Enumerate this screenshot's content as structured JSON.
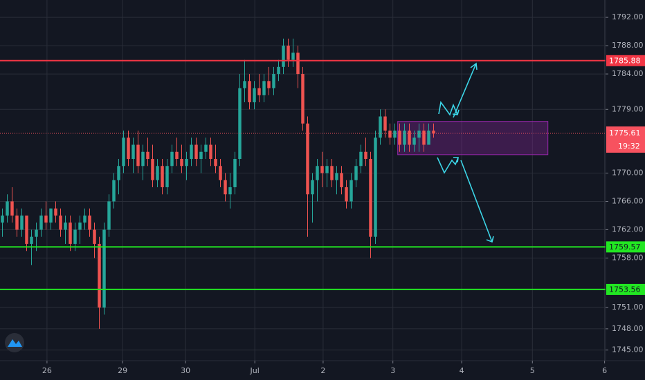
{
  "chart_data": {
    "type": "candlestick",
    "ylim": [
      1743.5,
      1794.45
    ],
    "xlim": [
      -0.5,
      124.5
    ],
    "grid": true,
    "up_color": "#26a69a",
    "down_color": "#ef5350",
    "yticks": [
      {
        "value": 1745,
        "label": "1745.00"
      },
      {
        "value": 1748,
        "label": "1748.00"
      },
      {
        "value": 1751,
        "label": "1751.00"
      },
      {
        "value": 1758,
        "label": "1758.00"
      },
      {
        "value": 1762,
        "label": "1762.00"
      },
      {
        "value": 1766,
        "label": "1766.00"
      },
      {
        "value": 1770,
        "label": "1770.00"
      },
      {
        "value": 1779,
        "label": "1779.00"
      },
      {
        "value": 1784,
        "label": "1784.00"
      },
      {
        "value": 1788,
        "label": "1788.00"
      },
      {
        "value": 1792,
        "label": "1792.00"
      }
    ],
    "xticks": [
      {
        "value": 9.2,
        "label": "26"
      },
      {
        "value": 24.8,
        "label": "29"
      },
      {
        "value": 37.8,
        "label": "30"
      },
      {
        "value": 52.1,
        "label": "Jul"
      },
      {
        "value": 66.2,
        "label": "2"
      },
      {
        "value": 80.6,
        "label": "3"
      },
      {
        "value": 94.8,
        "label": "4"
      },
      {
        "value": 109.4,
        "label": "5"
      },
      {
        "value": 124.3,
        "label": "6"
      }
    ],
    "levels": [
      {
        "value": 1785.88,
        "label": "1785.88",
        "color": "#f23645"
      },
      {
        "value": 1759.57,
        "label": "1759.57",
        "color": "#22e622"
      },
      {
        "value": 1753.56,
        "label": "1753.56",
        "color": "#22e622"
      }
    ],
    "last_price": {
      "value": 1775.61,
      "label": "1775.61",
      "countdown": "19:32",
      "color": "#f7525f"
    },
    "zone": {
      "x": [
        81.6,
        112.6
      ],
      "y": [
        1772.6,
        1777.3
      ],
      "color": "#9c27b0"
    },
    "candles": [
      [
        1763,
        1765,
        1761,
        1764
      ],
      [
        1764,
        1767,
        1763,
        1766
      ],
      [
        1766,
        1768,
        1763,
        1764
      ],
      [
        1764,
        1765,
        1761,
        1762
      ],
      [
        1762,
        1765,
        1761,
        1764
      ],
      [
        1764,
        1764,
        1759,
        1760
      ],
      [
        1760,
        1762,
        1757,
        1761
      ],
      [
        1761,
        1763,
        1759,
        1762
      ],
      [
        1762,
        1765,
        1761,
        1764
      ],
      [
        1764,
        1766,
        1762,
        1763
      ],
      [
        1763,
        1765,
        1762,
        1765
      ],
      [
        1765,
        1766,
        1763,
        1764
      ],
      [
        1764,
        1765,
        1761,
        1762
      ],
      [
        1762,
        1764,
        1760,
        1763
      ],
      [
        1763,
        1764,
        1759,
        1760
      ],
      [
        1760,
        1763,
        1759,
        1762
      ],
      [
        1762,
        1764,
        1760,
        1763
      ],
      [
        1763,
        1765,
        1762,
        1764
      ],
      [
        1764,
        1765,
        1761,
        1762
      ],
      [
        1762,
        1763,
        1758,
        1760
      ],
      [
        1760,
        1761,
        1748,
        1751
      ],
      [
        1751,
        1763,
        1750,
        1762
      ],
      [
        1762,
        1767,
        1761,
        1766
      ],
      [
        1766,
        1770,
        1765,
        1769
      ],
      [
        1769,
        1772,
        1767,
        1771
      ],
      [
        1771,
        1776,
        1770,
        1775
      ],
      [
        1775,
        1776,
        1771,
        1772
      ],
      [
        1772,
        1775,
        1770,
        1774
      ],
      [
        1774,
        1776,
        1770,
        1771
      ],
      [
        1771,
        1774,
        1769,
        1773
      ],
      [
        1773,
        1775,
        1771,
        1772
      ],
      [
        1772,
        1774,
        1768,
        1769
      ],
      [
        1769,
        1772,
        1768,
        1771
      ],
      [
        1771,
        1772,
        1767,
        1768
      ],
      [
        1768,
        1772,
        1767,
        1771
      ],
      [
        1771,
        1774,
        1770,
        1773
      ],
      [
        1773,
        1775,
        1771,
        1772
      ],
      [
        1772,
        1774,
        1770,
        1771
      ],
      [
        1771,
        1773,
        1769,
        1772
      ],
      [
        1772,
        1775,
        1771,
        1774
      ],
      [
        1774,
        1775,
        1771,
        1772
      ],
      [
        1772,
        1774,
        1770,
        1773
      ],
      [
        1773,
        1775,
        1772,
        1774
      ],
      [
        1774,
        1775,
        1771,
        1772
      ],
      [
        1772,
        1774,
        1770,
        1771
      ],
      [
        1771,
        1772,
        1768,
        1769
      ],
      [
        1769,
        1770,
        1766,
        1767
      ],
      [
        1767,
        1770,
        1765,
        1768
      ],
      [
        1768,
        1773,
        1767,
        1772
      ],
      [
        1772,
        1784,
        1771,
        1782
      ],
      [
        1782,
        1786,
        1780,
        1783
      ],
      [
        1783,
        1784,
        1779,
        1780
      ],
      [
        1780,
        1783,
        1779,
        1782
      ],
      [
        1782,
        1784,
        1780,
        1781
      ],
      [
        1781,
        1784,
        1780,
        1783
      ],
      [
        1783,
        1785,
        1781,
        1782
      ],
      [
        1782,
        1785,
        1781,
        1784
      ],
      [
        1784,
        1786,
        1783,
        1785
      ],
      [
        1785,
        1789,
        1784,
        1788
      ],
      [
        1788,
        1789,
        1785,
        1786
      ],
      [
        1786,
        1789,
        1785,
        1787
      ],
      [
        1787,
        1788,
        1782,
        1784
      ],
      [
        1784,
        1785,
        1776,
        1777
      ],
      [
        1777,
        1778,
        1761,
        1767
      ],
      [
        1767,
        1770,
        1763,
        1769
      ],
      [
        1769,
        1772,
        1766,
        1771
      ],
      [
        1771,
        1773,
        1768,
        1770
      ],
      [
        1770,
        1772,
        1768,
        1771
      ],
      [
        1771,
        1772,
        1768,
        1769
      ],
      [
        1769,
        1771,
        1767,
        1770
      ],
      [
        1770,
        1771,
        1767,
        1768
      ],
      [
        1768,
        1769,
        1765,
        1766
      ],
      [
        1766,
        1770,
        1765,
        1769
      ],
      [
        1769,
        1772,
        1768,
        1771
      ],
      [
        1771,
        1774,
        1770,
        1773
      ],
      [
        1773,
        1775,
        1771,
        1772
      ],
      [
        1772,
        1773,
        1758,
        1761
      ],
      [
        1761,
        1776,
        1760,
        1775
      ],
      [
        1775,
        1779,
        1774,
        1778
      ],
      [
        1778,
        1779,
        1775,
        1776
      ],
      [
        1776,
        1777,
        1774,
        1775
      ],
      [
        1775,
        1777,
        1774,
        1776
      ],
      [
        1776,
        1777,
        1773,
        1774
      ],
      [
        1774,
        1777,
        1773,
        1776
      ],
      [
        1776,
        1777,
        1773,
        1774
      ],
      [
        1774,
        1776,
        1773,
        1775
      ],
      [
        1775,
        1777,
        1773,
        1776
      ],
      [
        1776,
        1777,
        1773,
        1774
      ],
      [
        1774,
        1777,
        1774,
        1776
      ],
      [
        1776,
        1777,
        1775,
        1775.61
      ]
    ]
  }
}
